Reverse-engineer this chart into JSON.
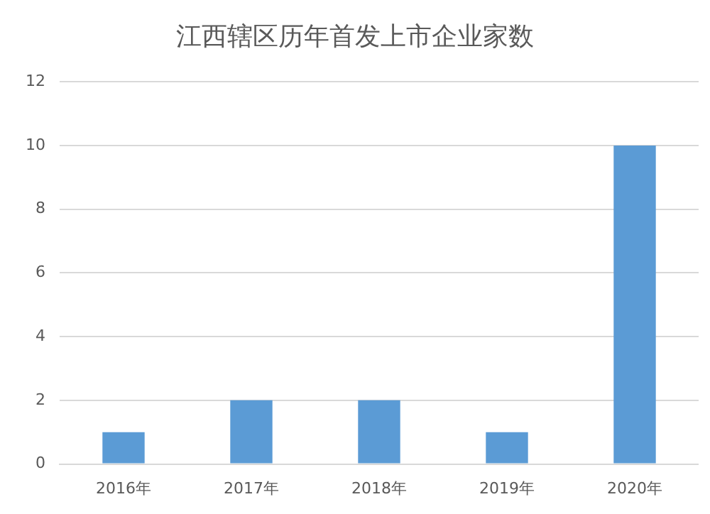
{
  "chart_data": {
    "type": "bar",
    "title": "江西辖区历年首发上市企业家数",
    "categories": [
      "2016年",
      "2017年",
      "2018年",
      "2019年",
      "2020年"
    ],
    "values": [
      1,
      2,
      2,
      1,
      10
    ],
    "color": "#5b9bd5",
    "ylim": [
      0,
      12
    ],
    "yticks": [
      0,
      2,
      4,
      6,
      8,
      10,
      12
    ],
    "grid": "y"
  }
}
